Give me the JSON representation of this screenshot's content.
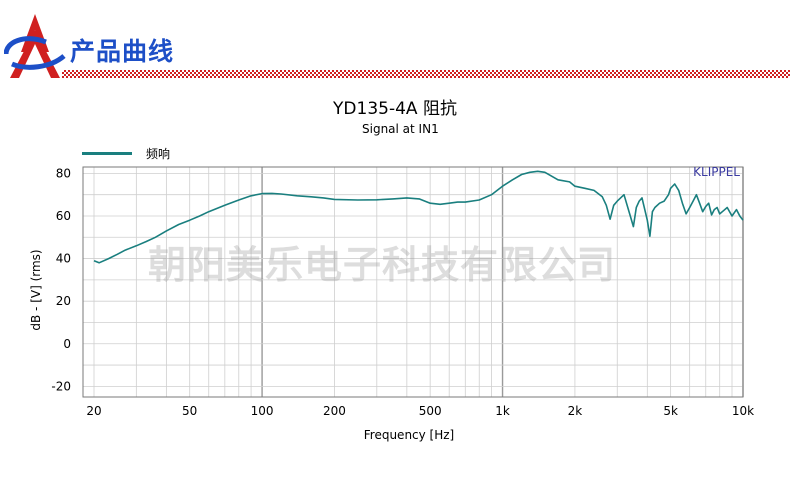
{
  "header": {
    "title": "产品曲线",
    "logo_icon": "a-letter-logo-icon"
  },
  "watermark": "朝阳美乐电子科技有限公司",
  "brand_tag": "KLIPPEL",
  "colors": {
    "accent": "#1d4fc7",
    "checker": "#d02020",
    "curve": "#1a7f7f",
    "grid": "#cfcfcf"
  },
  "chart_data": {
    "type": "line",
    "title": "YD135-4A 阻抗",
    "subtitle": "Signal at IN1",
    "xlabel": "Frequency [Hz]",
    "ylabel": "dB - [V]  (rms)",
    "x_scale": "log",
    "xlim": [
      18,
      10000
    ],
    "ylim": [
      -25,
      83
    ],
    "x_ticks": [
      {
        "value": 20,
        "label": "20"
      },
      {
        "value": 50,
        "label": "50"
      },
      {
        "value": 100,
        "label": "100"
      },
      {
        "value": 200,
        "label": "200"
      },
      {
        "value": 500,
        "label": "500"
      },
      {
        "value": 1000,
        "label": "1k"
      },
      {
        "value": 2000,
        "label": "2k"
      },
      {
        "value": 5000,
        "label": "5k"
      },
      {
        "value": 10000,
        "label": "10k"
      }
    ],
    "y_ticks": [
      {
        "value": 80,
        "label": "80"
      },
      {
        "value": 60,
        "label": "60"
      },
      {
        "value": 40,
        "label": "40"
      },
      {
        "value": 20,
        "label": "20"
      },
      {
        "value": 0,
        "label": "0"
      },
      {
        "value": -20,
        "label": "-20"
      }
    ],
    "grid": true,
    "legend": "top-left",
    "series": [
      {
        "name": "频响",
        "x": [
          20,
          21,
          23,
          25,
          27,
          30,
          33,
          36,
          40,
          45,
          50,
          55,
          60,
          70,
          80,
          90,
          100,
          110,
          120,
          140,
          160,
          180,
          200,
          250,
          300,
          350,
          400,
          450,
          500,
          550,
          600,
          650,
          700,
          800,
          900,
          1000,
          1100,
          1200,
          1300,
          1400,
          1500,
          1700,
          1900,
          2000,
          2200,
          2400,
          2600,
          2700,
          2800,
          2900,
          3000,
          3200,
          3400,
          3500,
          3600,
          3700,
          3800,
          4000,
          4100,
          4200,
          4300,
          4500,
          4700,
          4900,
          5000,
          5200,
          5400,
          5600,
          5800,
          6000,
          6200,
          6400,
          6600,
          6800,
          7000,
          7200,
          7400,
          7600,
          7800,
          8000,
          8300,
          8600,
          9000,
          9400,
          9700,
          10000
        ],
        "values": [
          39,
          38,
          40,
          42,
          44,
          46,
          48,
          50,
          53,
          56,
          58,
          60,
          62,
          65,
          67.5,
          69.5,
          70.5,
          70.6,
          70.3,
          69.5,
          69,
          68.5,
          67.8,
          67.5,
          67.6,
          68,
          68.5,
          68,
          66,
          65.5,
          66,
          66.5,
          66.5,
          67.5,
          70,
          74,
          77,
          79.5,
          80.5,
          81,
          80.5,
          77,
          76,
          74,
          73,
          72,
          69,
          65,
          58.5,
          65,
          67,
          70,
          60,
          55,
          64,
          67,
          68.5,
          58,
          50.5,
          62,
          64,
          66,
          67,
          70,
          73,
          75,
          72,
          66,
          61,
          64,
          67,
          70,
          66,
          62,
          64.5,
          66,
          60.5,
          63,
          64,
          61,
          62.5,
          64,
          60,
          63,
          60,
          58
        ]
      }
    ]
  }
}
